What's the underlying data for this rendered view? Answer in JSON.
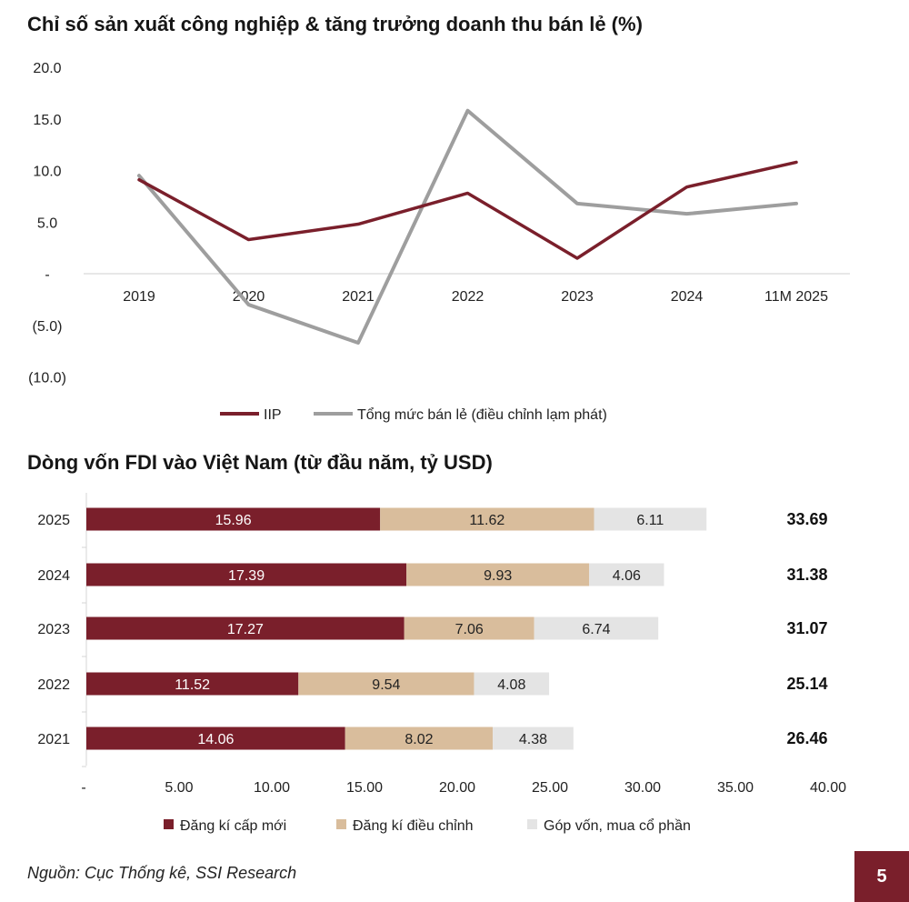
{
  "page": {
    "source": "Nguồn: Cục Thống kê, SSI Research",
    "page_number": "5"
  },
  "chart_data": [
    {
      "type": "line",
      "title": "Chỉ số sản xuất công nghiệp & tăng trưởng doanh thu bán lẻ (%)",
      "categories": [
        "2019",
        "2020",
        "2021",
        "2022",
        "2023",
        "2024",
        "11M 2025"
      ],
      "y_ticks": [
        "20.0",
        "15.0",
        "10.0",
        "5.0",
        "-",
        "(5.0)",
        "(10.0)"
      ],
      "ylim": [
        -10,
        20
      ],
      "grid": false,
      "legend_position": "bottom",
      "series": [
        {
          "name": "IIP",
          "color": "#7a1f2b",
          "values": [
            9.1,
            3.3,
            4.8,
            7.8,
            1.5,
            8.4,
            10.8
          ]
        },
        {
          "name": "Tổng mức bán lẻ (điều chỉnh lạm phát)",
          "color": "#9e9e9e",
          "values": [
            9.5,
            -3.0,
            -6.7,
            15.8,
            6.8,
            5.8,
            6.8
          ]
        }
      ]
    },
    {
      "type": "bar",
      "orientation": "horizontal",
      "stacked": true,
      "title": "Dòng vốn FDI vào Việt Nam (từ đầu năm, tỷ USD)",
      "categories": [
        "2025",
        "2024",
        "2023",
        "2022",
        "2021"
      ],
      "x_ticks": [
        "-",
        "5.00",
        "10.00",
        "15.00",
        "20.00",
        "25.00",
        "30.00",
        "35.00",
        "40.00"
      ],
      "xlim": [
        0,
        40
      ],
      "grid": false,
      "legend_position": "bottom",
      "series": [
        {
          "name": "Đăng kí cấp mới",
          "color": "#7a1f2b",
          "label_color": "#ffffff",
          "values": [
            15.96,
            17.39,
            17.27,
            11.52,
            14.06
          ],
          "labels": [
            "15.96",
            "17.39",
            "17.27",
            "11.52",
            "14.06"
          ]
        },
        {
          "name": "Đăng kí điều chỉnh",
          "color": "#d9bd9c",
          "label_color": "#222222",
          "values": [
            11.62,
            9.93,
            7.06,
            9.54,
            8.02
          ],
          "labels": [
            "11.62",
            "9.93",
            "7.06",
            "9.54",
            "8.02"
          ]
        },
        {
          "name": "Góp vốn, mua cổ phần",
          "color": "#e4e4e4",
          "label_color": "#222222",
          "values": [
            6.11,
            4.06,
            6.74,
            4.08,
            4.38
          ],
          "labels": [
            "6.11",
            "4.06",
            "6.74",
            "4.08",
            "4.38"
          ]
        }
      ],
      "totals": [
        "33.69",
        "31.38",
        "31.07",
        "25.14",
        "26.46"
      ]
    }
  ]
}
